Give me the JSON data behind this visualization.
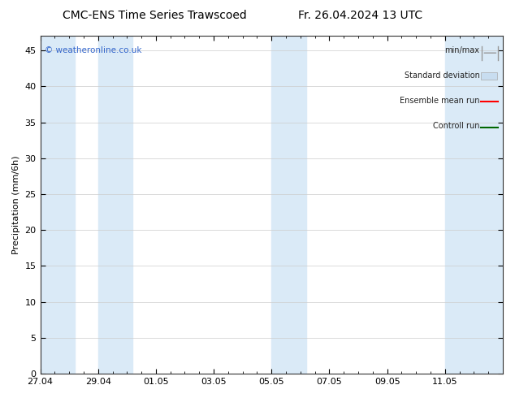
{
  "title_left": "CMC-ENS Time Series Trawscoed",
  "title_right": "Fr. 26.04.2024 13 UTC",
  "ylabel": "Precipitation (mm/6h)",
  "copyright": "© weatheronline.co.uk",
  "copyright_color": "#3366cc",
  "background_color": "#ffffff",
  "plot_bg_color": "#ffffff",
  "shading_color": "#daeaf7",
  "xmin": 0,
  "xmax": 16,
  "ymin": 0,
  "ymax": 47,
  "yticks": [
    0,
    5,
    10,
    15,
    20,
    25,
    30,
    35,
    40,
    45
  ],
  "xtick_labels": [
    "27.04",
    "29.04",
    "01.05",
    "03.05",
    "05.05",
    "07.05",
    "09.05",
    "11.05"
  ],
  "xtick_positions": [
    0,
    2,
    4,
    6,
    8,
    10,
    12,
    14
  ],
  "shaded_bands": [
    [
      0,
      1.2
    ],
    [
      2.0,
      3.2
    ],
    [
      8.0,
      9.2
    ],
    [
      14.0,
      16.0
    ]
  ],
  "legend_labels": [
    "min/max",
    "Standard deviation",
    "Ensemble mean run",
    "Controll run"
  ],
  "minmax_color": "#999999",
  "stddev_color": "#c8ddf0",
  "ensemble_color": "#ff0000",
  "control_color": "#006600",
  "title_fontsize": 10,
  "axis_fontsize": 8,
  "tick_fontsize": 8,
  "legend_fontsize": 7
}
